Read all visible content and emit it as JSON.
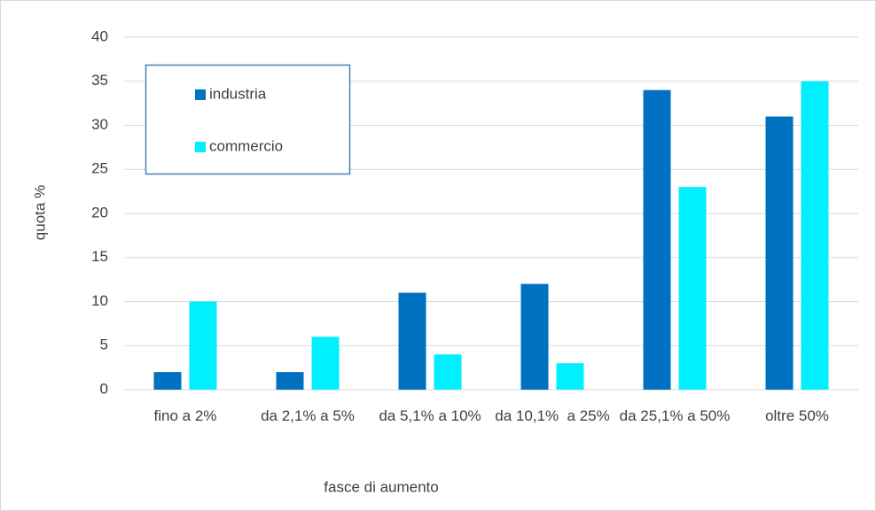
{
  "chart_data": {
    "type": "bar",
    "categories": [
      "fino a 2%",
      "da 2,1% a 5%",
      "da 5,1% a 10%",
      "da 10,1%  a 25%",
      "da 25,1% a 50%",
      "oltre 50%"
    ],
    "series": [
      {
        "name": "industria",
        "color": "#0070c0",
        "values": [
          2,
          2,
          11,
          12,
          34,
          31
        ]
      },
      {
        "name": "commercio",
        "color": "#00f0ff",
        "values": [
          10,
          6,
          4,
          3,
          23,
          35
        ]
      }
    ],
    "ylabel": "quota %",
    "xlabel": "fasce di aumento",
    "ylim": [
      0,
      40
    ],
    "yticks": [
      0,
      5,
      10,
      15,
      20,
      25,
      30,
      35,
      40
    ],
    "grid": true,
    "legend": "upper left"
  }
}
